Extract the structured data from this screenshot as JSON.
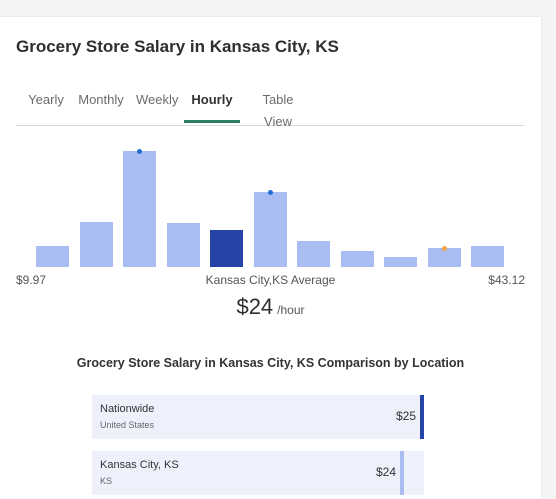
{
  "title": "Grocery Store Salary in Kansas City, KS",
  "tabs": [
    {
      "label": "Yearly",
      "active": false
    },
    {
      "label": "Monthly",
      "active": false
    },
    {
      "label": "Weekly",
      "active": false
    },
    {
      "label": "Hourly",
      "active": true
    },
    {
      "label": "Table View",
      "active": false
    }
  ],
  "chart_data": {
    "type": "bar",
    "bars": [
      {
        "level": 0.18,
        "highlight": false,
        "marker": null
      },
      {
        "level": 0.39,
        "highlight": false,
        "marker": null
      },
      {
        "level": 1.0,
        "highlight": false,
        "marker": "#1f6fd6"
      },
      {
        "level": 0.38,
        "highlight": false,
        "marker": null
      },
      {
        "level": 0.32,
        "highlight": true,
        "marker": null
      },
      {
        "level": 0.65,
        "highlight": false,
        "marker": "#1f6fd6"
      },
      {
        "level": 0.22,
        "highlight": false,
        "marker": null
      },
      {
        "level": 0.14,
        "highlight": false,
        "marker": null
      },
      {
        "level": 0.09,
        "highlight": false,
        "marker": null
      },
      {
        "level": 0.16,
        "highlight": false,
        "marker": "#f0a446"
      },
      {
        "level": 0.18,
        "highlight": false,
        "marker": null
      }
    ],
    "range_min": "$9.97",
    "range_max": "$43.12"
  },
  "average": {
    "label": "Kansas City,KS Average",
    "amount": "$24",
    "unit": "/hour"
  },
  "comparison": {
    "title": "Grocery Store Salary in Kansas City, KS Comparison by Location",
    "rows": [
      {
        "name": "Nationwide",
        "sub": "United States",
        "value": "$25",
        "fraction": 1.0,
        "color": "#2444a8"
      },
      {
        "name": "Kansas City, KS",
        "sub": "KS",
        "value": "$24",
        "fraction": 0.94,
        "color": "#a9bdf2"
      }
    ]
  },
  "colors": {
    "bar": "#a9bdf2",
    "bar_highlight": "#2444a8",
    "tab_active_underline": "#2f7d63"
  }
}
